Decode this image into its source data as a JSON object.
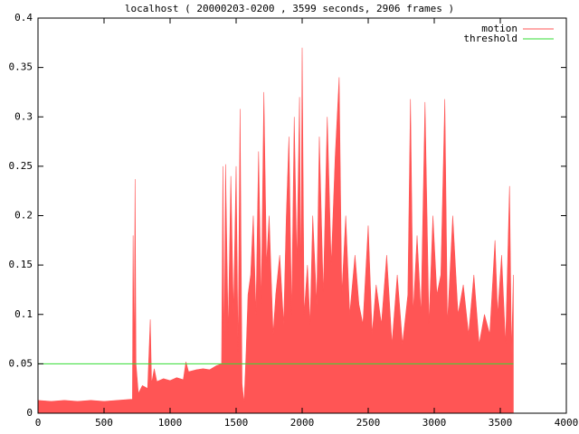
{
  "chart_data": {
    "type": "line",
    "title": "localhost ( 20000203-0200 , 3599 seconds, 2906 frames )",
    "xlim": [
      0,
      4000
    ],
    "ylim": [
      0,
      0.4
    ],
    "xticks": [
      0,
      500,
      1000,
      1500,
      2000,
      2500,
      3000,
      3500,
      4000
    ],
    "yticks": [
      0,
      0.05,
      0.1,
      0.15,
      0.2,
      0.25,
      0.3,
      0.35,
      0.4
    ],
    "legend": "top-right",
    "series": [
      {
        "name": "motion",
        "color": "#ff5555",
        "fill": true,
        "x": [
          0,
          100,
          200,
          300,
          400,
          500,
          600,
          700,
          715,
          720,
          728,
          735,
          742,
          760,
          790,
          830,
          850,
          860,
          880,
          900,
          950,
          1000,
          1050,
          1100,
          1120,
          1140,
          1200,
          1250,
          1300,
          1350,
          1390,
          1400,
          1410,
          1420,
          1440,
          1460,
          1480,
          1500,
          1515,
          1530,
          1545,
          1560,
          1575,
          1590,
          1610,
          1630,
          1650,
          1670,
          1690,
          1710,
          1730,
          1750,
          1780,
          1800,
          1830,
          1860,
          1880,
          1900,
          1920,
          1940,
          1960,
          1980,
          1990,
          2000,
          2015,
          2040,
          2060,
          2080,
          2110,
          2130,
          2160,
          2190,
          2220,
          2250,
          2280,
          2300,
          2330,
          2360,
          2400,
          2430,
          2460,
          2500,
          2530,
          2560,
          2600,
          2640,
          2680,
          2720,
          2760,
          2800,
          2820,
          2840,
          2870,
          2900,
          2930,
          2960,
          2990,
          3020,
          3050,
          3080,
          3100,
          3140,
          3180,
          3220,
          3260,
          3300,
          3340,
          3380,
          3420,
          3460,
          3480,
          3510,
          3540,
          3570,
          3585,
          3599
        ],
        "values": [
          0.013,
          0.012,
          0.013,
          0.012,
          0.013,
          0.012,
          0.013,
          0.014,
          0.014,
          0.18,
          0.05,
          0.237,
          0.05,
          0.02,
          0.028,
          0.025,
          0.095,
          0.03,
          0.045,
          0.032,
          0.035,
          0.033,
          0.036,
          0.034,
          0.052,
          0.042,
          0.044,
          0.045,
          0.044,
          0.048,
          0.05,
          0.25,
          0.06,
          0.252,
          0.08,
          0.24,
          0.1,
          0.25,
          0.06,
          0.308,
          0.03,
          0.01,
          0.06,
          0.12,
          0.14,
          0.2,
          0.1,
          0.265,
          0.11,
          0.325,
          0.15,
          0.2,
          0.08,
          0.12,
          0.16,
          0.09,
          0.2,
          0.28,
          0.1,
          0.3,
          0.15,
          0.32,
          0.12,
          0.37,
          0.1,
          0.15,
          0.09,
          0.2,
          0.11,
          0.28,
          0.12,
          0.3,
          0.15,
          0.26,
          0.34,
          0.12,
          0.2,
          0.1,
          0.16,
          0.11,
          0.09,
          0.19,
          0.08,
          0.13,
          0.09,
          0.16,
          0.07,
          0.14,
          0.07,
          0.12,
          0.318,
          0.1,
          0.18,
          0.1,
          0.315,
          0.09,
          0.2,
          0.12,
          0.14,
          0.318,
          0.09,
          0.2,
          0.1,
          0.13,
          0.08,
          0.14,
          0.07,
          0.1,
          0.08,
          0.175,
          0.1,
          0.16,
          0.07,
          0.23,
          0.06,
          0.14
        ]
      },
      {
        "name": "threshold",
        "color": "#33dd33",
        "fill": false,
        "x": [
          0,
          3599
        ],
        "values": [
          0.05,
          0.05
        ]
      }
    ]
  }
}
